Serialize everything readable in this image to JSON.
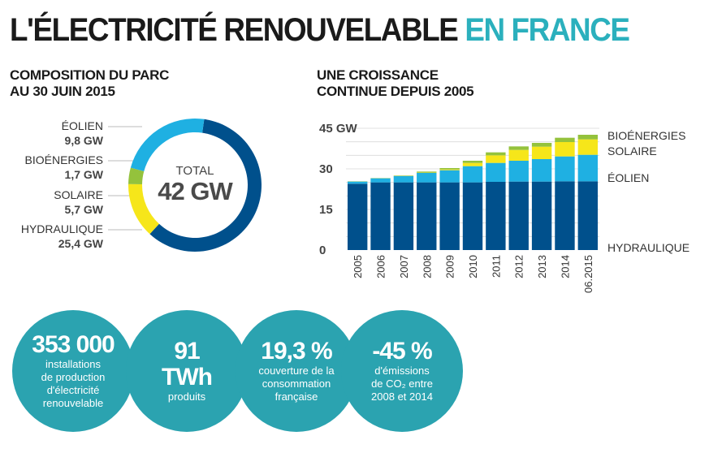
{
  "header": {
    "title_main": "L'ÉLECTRICITÉ RENOUVELABLE",
    "title_accent": "EN FRANCE"
  },
  "left": {
    "subtitle_line1": "COMPOSITION DU PARC",
    "subtitle_line2": "AU 30 JUIN 2015"
  },
  "right": {
    "subtitle_line1": "UNE CROISSANCE",
    "subtitle_line2": "CONTINUE DEPUIS 2005"
  },
  "colors": {
    "hydraulique": "#00508c",
    "eolien": "#1fb0e2",
    "solaire": "#f6e61a",
    "bioenergies": "#94c23c",
    "accent": "#2bb0bd",
    "stat_circle": "#2ba3b0"
  },
  "chart_data": [
    {
      "type": "pie",
      "style": "donut",
      "center_label": "TOTAL",
      "center_value": "42 GW",
      "slices": [
        {
          "name": "ÉOLIEN",
          "value_label": "9,8 GW",
          "value": 9.8
        },
        {
          "name": "BIOÉNERGIES",
          "value_label": "1,7 GW",
          "value": 1.7
        },
        {
          "name": "SOLAIRE",
          "value_label": "5,7 GW",
          "value": 5.7
        },
        {
          "name": "HYDRAULIQUE",
          "value_label": "25,4 GW",
          "value": 25.4
        }
      ]
    },
    {
      "type": "bar",
      "stacked": true,
      "categories": [
        "2005",
        "2006",
        "2007",
        "2008",
        "2009",
        "2010",
        "2011",
        "2012",
        "2013",
        "2014",
        "06.2015"
      ],
      "ylim": [
        0,
        45
      ],
      "yticks": [
        "0",
        "15",
        "30",
        "45 GW"
      ],
      "grid": true,
      "series": [
        {
          "name": "HYDRAULIQUE",
          "values": [
            24.5,
            25.0,
            25.0,
            25.0,
            25.0,
            25.0,
            25.2,
            25.3,
            25.3,
            25.4,
            25.4
          ]
        },
        {
          "name": "ÉOLIEN",
          "values": [
            0.8,
            1.5,
            2.3,
            3.5,
            4.5,
            6.0,
            7.0,
            7.7,
            8.3,
            9.2,
            9.8
          ]
        },
        {
          "name": "SOLAIRE",
          "values": [
            0,
            0,
            0,
            0.1,
            0.3,
            1.2,
            2.8,
            4.0,
            4.6,
            5.3,
            5.7
          ]
        },
        {
          "name": "BIOÉNERGIES",
          "values": [
            0.1,
            0.1,
            0.2,
            0.4,
            0.5,
            0.8,
            1.1,
            1.3,
            1.4,
            1.6,
            1.7
          ]
        }
      ],
      "legend": [
        "BIOÉNERGIES",
        "SOLAIRE",
        "ÉOLIEN",
        "HYDRAULIQUE"
      ]
    }
  ],
  "stats": [
    {
      "big": "353 000",
      "lines": [
        "installations",
        "de production",
        "d'électricité",
        "renouvelable"
      ]
    },
    {
      "big": "91",
      "big2": "TWh",
      "lines": [
        "produits"
      ]
    },
    {
      "big": "19,3 %",
      "lines": [
        "couverture de la",
        "consommation",
        "française"
      ]
    },
    {
      "big": "-45 %",
      "lines": [
        "d'émissions",
        "de CO₂ entre",
        "2008 et 2014"
      ]
    }
  ]
}
